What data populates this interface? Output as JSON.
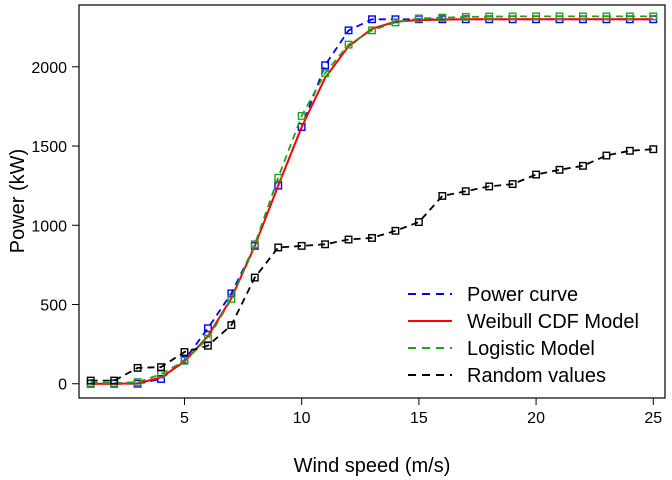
{
  "chart_data": {
    "type": "line",
    "title": "",
    "xlabel": "Wind speed (m/s)",
    "ylabel": "Power (kW)",
    "xlim": [
      0.5,
      25.5
    ],
    "ylim": [
      -90,
      2390
    ],
    "x_ticks": [
      5,
      10,
      15,
      20,
      25
    ],
    "y_ticks": [
      0,
      500,
      1000,
      1500,
      2000
    ],
    "grid": false,
    "legend_position": "bottom-right",
    "x": [
      1,
      2,
      3,
      4,
      5,
      6,
      7,
      8,
      9,
      10,
      11,
      12,
      13,
      14,
      15,
      16,
      17,
      18,
      19,
      20,
      21,
      22,
      23,
      24,
      25
    ],
    "series": [
      {
        "name": "Power curve",
        "color": "#0000ff",
        "line": "dashed",
        "marker": "square",
        "values": [
          0,
          0,
          0,
          30,
          150,
          350,
          570,
          870,
          1250,
          1620,
          2010,
          2230,
          2300,
          2300,
          2300,
          2300,
          2300,
          2300,
          2300,
          2300,
          2300,
          2300,
          2300,
          2300,
          2300
        ]
      },
      {
        "name": "Weibull CDF Model",
        "color": "#ff0000",
        "line": "solid",
        "marker": "none",
        "values": [
          0,
          0,
          2,
          40,
          140,
          300,
          540,
          870,
          1250,
          1620,
          1930,
          2130,
          2240,
          2285,
          2295,
          2298,
          2300,
          2300,
          2300,
          2300,
          2300,
          2300,
          2300,
          2300,
          2300
        ]
      },
      {
        "name": "Logistic Model",
        "color": "#22a022",
        "line": "dashed",
        "marker": "square",
        "values": [
          5,
          5,
          10,
          60,
          145,
          285,
          535,
          880,
          1300,
          1690,
          1960,
          2140,
          2230,
          2280,
          2305,
          2310,
          2315,
          2317,
          2318,
          2318,
          2318,
          2318,
          2318,
          2318,
          2318
        ]
      },
      {
        "name": "Random values",
        "color": "#000000",
        "line": "dashed",
        "marker": "square",
        "values": [
          20,
          20,
          100,
          105,
          200,
          240,
          370,
          670,
          860,
          870,
          880,
          910,
          920,
          965,
          1020,
          1185,
          1215,
          1245,
          1260,
          1320,
          1350,
          1375,
          1440,
          1470,
          1480
        ]
      }
    ]
  }
}
